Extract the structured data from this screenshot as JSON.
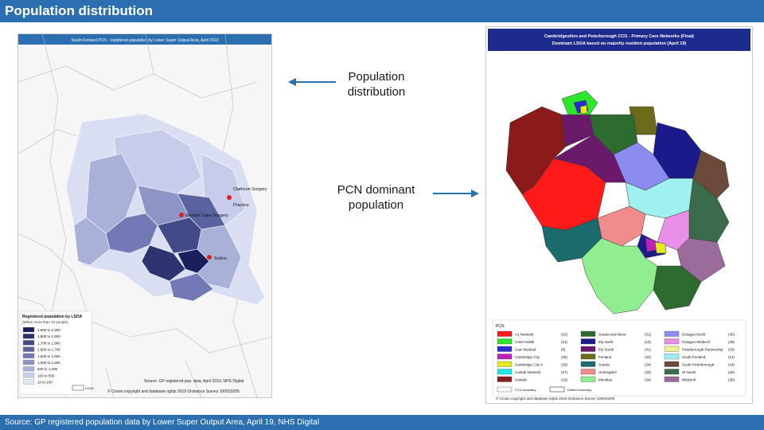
{
  "slide": {
    "title": "Population distribution",
    "footer": "Source: GP registered population data by Lower Super Output Area, April 19, NHS Digital",
    "accent_color": "#2b6fb0"
  },
  "callouts": {
    "population": "Population distribution",
    "pcn": "PCN dominant population"
  },
  "left_map": {
    "title": "South Fenland PCN - registered population by Lower Super Output Area, April 2019",
    "practices": [
      "Clarkson Surgery",
      "Practice",
      "George Clare Surgery",
      "Sutton"
    ],
    "legend_title": "Registered population by LSOA",
    "legend_subtitle": "(When more than 10 people)",
    "legend_bins": [
      "1,900 to 2,300",
      "1,800 to 1,900",
      "1,700 to 1,800",
      "1,600 to 1,700",
      "1,500 to 1,600",
      "1,000 to 1,500",
      "500 to 1,000",
      "100 to 500",
      "10 to 100"
    ],
    "legend_colors": [
      "#1b1f5e",
      "#2e3470",
      "#434a88",
      "#5a62a0",
      "#7279b4",
      "#8e95c6",
      "#aab1d9",
      "#c6cce9",
      "#e1e5f5"
    ],
    "lsoa_label": "LSOA",
    "source": "Source: GP registered pop. data, April 2019, NHS Digital",
    "copyright": "© Crown copyright and database rights 2019 Ordnance Survey 100023205"
  },
  "right_map": {
    "title_line1": "Cambridgeshire and Peterborough CCG - Primary Care Networks (Final)",
    "title_line2": "Dominant LSOA based on majority resident population (April 19)",
    "legend_heading": "PCN",
    "legend": [
      {
        "name": "A1 Network",
        "code": "(16)",
        "color": "#ff1a1a"
      },
      {
        "name": "CAM Health",
        "code": "(14)",
        "color": "#2ee62e"
      },
      {
        "name": "Cam Medical",
        "code": "(8)",
        "color": "#2b2bd6"
      },
      {
        "name": "Cambridge City",
        "code": "(26)",
        "color": "#c020c0"
      },
      {
        "name": "Cambridge City 4",
        "code": "(29)",
        "color": "#e8e820"
      },
      {
        "name": "Cantab Network",
        "code": "(27)",
        "color": "#20e8e8"
      },
      {
        "name": "Cantab",
        "code": "(16)",
        "color": "#8b1a1a"
      },
      {
        "name": "Granta and Nene",
        "code": "(31)",
        "color": "#2e6b2e"
      },
      {
        "name": "Ely North",
        "code": "(10)",
        "color": "#1a1a8b"
      },
      {
        "name": "Ely South",
        "code": "(41)",
        "color": "#6b1a6b"
      },
      {
        "name": "Fenland",
        "code": "(32)",
        "color": "#6b6b1a"
      },
      {
        "name": "Granta",
        "code": "(34)",
        "color": "#1a6b6b"
      },
      {
        "name": "Huntingdon",
        "code": "(33)",
        "color": "#f08c8c"
      },
      {
        "name": "Meridian",
        "code": "(34)",
        "color": "#90ee90"
      },
      {
        "name": "Octagon North",
        "code": "(45)",
        "color": "#8c8cf0"
      },
      {
        "name": "Octagon Wisbech",
        "code": "(36)",
        "color": "#e890e8"
      },
      {
        "name": "Peterborough Partnership",
        "code": "(33)",
        "color": "#f0f090"
      },
      {
        "name": "South Fenland",
        "code": "(12)",
        "color": "#a0f0f0"
      },
      {
        "name": "South Peterborough",
        "code": "(44)",
        "color": "#6b4a3a"
      },
      {
        "name": "St Neots",
        "code": "(26)",
        "color": "#3a6b4a"
      },
      {
        "name": "Wisbech",
        "code": "(28)",
        "color": "#9b6b9b"
      }
    ],
    "boundary_ccg": "CCG boundary",
    "boundary_district": "District boundary",
    "copyright": "© Crown copyright and database rights 2019 Ordnance Survey 100023205"
  }
}
